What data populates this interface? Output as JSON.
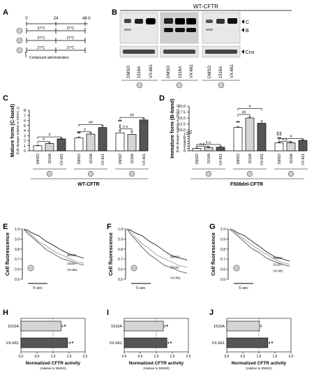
{
  "panel_labels": [
    "A",
    "B",
    "C",
    "D",
    "E",
    "F",
    "G",
    "H",
    "I",
    "J"
  ],
  "timeline": {
    "ticks": [
      "0",
      "24",
      "48 h"
    ],
    "rows": [
      {
        "left": "37°C",
        "right": "37°C",
        "compound_at": "start"
      },
      {
        "left": "37°C",
        "right": "27°C",
        "compound_at": "start"
      },
      {
        "left": "27°C",
        "right": "37°C",
        "compound_at": "start"
      }
    ],
    "legend": "Compound administration"
  },
  "blot": {
    "title": "WT-CFTR",
    "band_labels": [
      "C",
      "B",
      "Cnx"
    ],
    "lane_labels": [
      "DMSO",
      "1516A",
      "VX-661",
      "DMSO",
      "1516A",
      "VX-661",
      "DMSO",
      "1516A",
      "VX-661"
    ]
  },
  "colors": {
    "dmso": "#ffffff",
    "c1516": "#d4d4d4",
    "vx661": "#555555",
    "trace_dmso": "#222222",
    "trace_1516": "#9a9a9a",
    "trace_vx": "#555555"
  },
  "chart_data": [
    {
      "id": "C",
      "type": "bar",
      "title": "",
      "ylabel": "Mature form (C-band)",
      "ylabel_sub": "(fold changes relative to DMSO_1)",
      "xlabel": "WT-CFTR",
      "ylim": [
        0,
        8
      ],
      "yticks": [
        0,
        1,
        2,
        3,
        4,
        5,
        6,
        7,
        8
      ],
      "groups": [
        {
          "bars": [
            {
              "label": "DMSO",
              "value": 1.0,
              "err": 0.1
            },
            {
              "label": "1516A",
              "value": 1.45,
              "err": 0.1
            },
            {
              "label": "VX-661",
              "value": 2.35,
              "err": 0.15
            }
          ]
        },
        {
          "bars": [
            {
              "label": "DMSO",
              "value": 2.55,
              "err": 0.2
            },
            {
              "label": "1516A",
              "value": 3.3,
              "err": 0.3
            },
            {
              "label": "VX-661",
              "value": 4.6,
              "err": 0.35
            }
          ]
        },
        {
          "bars": [
            {
              "label": "DMSO",
              "value": 3.55,
              "err": 0.5
            },
            {
              "label": "1516A",
              "value": 3.25,
              "err": 0.6
            },
            {
              "label": "VX-661",
              "value": 6.1,
              "err": 0.3
            }
          ]
        }
      ],
      "marks": [
        {
          "group": 1,
          "bar": 0,
          "text": "**"
        },
        {
          "group": 2,
          "bar": 0,
          "text": "‡"
        },
        {
          "group": 2,
          "bar": 0,
          "text": "**"
        }
      ],
      "brackets": [
        {
          "group": 0,
          "from": 0,
          "to": 1,
          "text": "#",
          "y": 1.85
        },
        {
          "group": 0,
          "from": 0,
          "to": 2,
          "text": "#",
          "y": 2.75
        },
        {
          "group": 1,
          "from": 0,
          "to": 1,
          "text": "#",
          "y": 3.75
        },
        {
          "group": 1,
          "from": 0,
          "to": 2,
          "text": "##",
          "y": 5.2
        },
        {
          "group": 2,
          "from": 0,
          "to": 1,
          "text": "n.s.",
          "y": 4.35
        },
        {
          "group": 2,
          "from": 0,
          "to": 2,
          "text": "##",
          "y": 6.6
        }
      ]
    },
    {
      "id": "D",
      "type": "bar",
      "title": "",
      "ylabel": "Immature form (B-band)",
      "ylabel_sub": "(fold changes relative to DMSO_1)",
      "xlabel": "F508del-CFTR",
      "axis_break": true,
      "yticks": [
        "0",
        "1",
        "2",
        "3",
        "4",
        "5",
        "6",
        "7",
        "10.0",
        "12.5",
        "15.0",
        "17.5",
        "20.0"
      ],
      "groups": [
        {
          "bars": [
            {
              "label": "DMSO",
              "value": 1.0,
              "err": 0.15
            },
            {
              "label": "1516A",
              "value": 1.4,
              "err": 0.3
            },
            {
              "label": "VX-661",
              "value": 1.5,
              "err": 0.35
            }
          ]
        },
        {
          "bars": [
            {
              "label": "DMSO",
              "value": 11.0,
              "err": 0.4
            },
            {
              "label": "1516A",
              "value": 15.0,
              "err": 0.5
            },
            {
              "label": "VX-661",
              "value": 12.8,
              "err": 1.0
            }
          ]
        },
        {
          "bars": [
            {
              "label": "DMSO",
              "value": 3.3,
              "err": 0.2
            },
            {
              "label": "1516A",
              "value": 3.4,
              "err": 0.2
            },
            {
              "label": "VX-661",
              "value": 4.35,
              "err": 0.3
            }
          ]
        }
      ],
      "marks": [
        {
          "group": 1,
          "bar": 0,
          "text": "**"
        },
        {
          "group": 2,
          "bar": 0,
          "text": "**"
        },
        {
          "group": 2,
          "bar": 0,
          "text": "‡‡"
        }
      ],
      "brackets": [
        {
          "group": 0,
          "from": 0,
          "to": 1,
          "text": "n.s.",
          "y": 1.9
        },
        {
          "group": 0,
          "from": 0,
          "to": 2,
          "text": "n.s.",
          "y": 2.65
        },
        {
          "group": 1,
          "from": 0,
          "to": 1,
          "text": "##",
          "y": 16.5
        },
        {
          "group": 1,
          "from": 0,
          "to": 2,
          "text": "#",
          "y": 19.0
        },
        {
          "group": 2,
          "from": 0,
          "to": 1,
          "text": "n.s.",
          "y": 4.0
        },
        {
          "group": 2,
          "from": 0,
          "to": 2,
          "text": "#",
          "y": 5.1
        }
      ]
    },
    {
      "id": "E",
      "type": "line",
      "ylabel": "Cell fluorescence",
      "ylim": [
        0.5,
        1.0
      ],
      "yticks": [
        "0.5",
        "0.6",
        "0.7",
        "0.8",
        "0.9",
        "1.0"
      ],
      "scalebar": "5 sec",
      "series": [
        {
          "name": "DMSO",
          "x": [
            0,
            0.5,
            1,
            2,
            3,
            4,
            5,
            6,
            7,
            8
          ],
          "y": [
            1.0,
            0.99,
            0.97,
            0.93,
            0.88,
            0.83,
            0.79,
            0.76,
            0.73,
            0.71
          ]
        },
        {
          "name": "1516A",
          "x": [
            0,
            0.5,
            1,
            2,
            3,
            4,
            5,
            6,
            7,
            8
          ],
          "y": [
            1.0,
            0.97,
            0.94,
            0.88,
            0.83,
            0.78,
            0.74,
            0.71,
            0.68,
            0.66
          ]
        },
        {
          "name": "VX-661",
          "x": [
            0,
            0.5,
            1,
            2,
            3,
            4,
            5,
            6,
            7,
            8
          ],
          "y": [
            1.0,
            0.96,
            0.92,
            0.86,
            0.8,
            0.75,
            0.71,
            0.68,
            0.66,
            0.64
          ]
        }
      ]
    },
    {
      "id": "F",
      "type": "line",
      "ylabel": "Cell fluorescence",
      "ylim": [
        0.5,
        1.0
      ],
      "yticks": [
        "0.5",
        "0.6",
        "0.7",
        "0.8",
        "0.9",
        "1.0"
      ],
      "scalebar": "5 sec",
      "series": [
        {
          "name": "DMSO",
          "x": [
            0,
            0.5,
            1,
            2,
            3,
            4,
            5,
            6,
            7,
            8
          ],
          "y": [
            1.0,
            0.99,
            0.97,
            0.93,
            0.88,
            0.83,
            0.78,
            0.74,
            0.71,
            0.69
          ]
        },
        {
          "name": "1516A",
          "x": [
            0,
            0.5,
            1,
            2,
            3,
            4,
            5,
            6,
            7,
            8
          ],
          "y": [
            1.0,
            0.97,
            0.93,
            0.86,
            0.8,
            0.74,
            0.7,
            0.67,
            0.64,
            0.62
          ]
        },
        {
          "name": "VX-661",
          "x": [
            0,
            0.5,
            1,
            2,
            3,
            4,
            5,
            6,
            7,
            8
          ],
          "y": [
            1.0,
            0.95,
            0.9,
            0.82,
            0.75,
            0.69,
            0.64,
            0.61,
            0.58,
            0.56
          ]
        }
      ]
    },
    {
      "id": "G",
      "type": "line",
      "ylabel": "Cell fluorescence",
      "ylim": [
        0.5,
        1.0
      ],
      "yticks": [
        "0.5",
        "0.6",
        "0.7",
        "0.8",
        "0.9",
        "1.0"
      ],
      "scalebar": "5 sec",
      "series": [
        {
          "name": "DMSO",
          "x": [
            0,
            0.5,
            1,
            2,
            3,
            4,
            5,
            6,
            7,
            8
          ],
          "y": [
            1.0,
            0.99,
            0.97,
            0.93,
            0.88,
            0.82,
            0.77,
            0.73,
            0.7,
            0.68
          ]
        },
        {
          "name": "1516A",
          "x": [
            0,
            0.5,
            1,
            2,
            3,
            4,
            5,
            6,
            7,
            8
          ],
          "y": [
            1.0,
            0.98,
            0.95,
            0.9,
            0.84,
            0.79,
            0.74,
            0.7,
            0.67,
            0.65
          ]
        },
        {
          "name": "VX-661",
          "x": [
            0,
            0.5,
            1,
            2,
            3,
            4,
            5,
            6,
            7,
            8
          ],
          "y": [
            1.0,
            0.97,
            0.93,
            0.87,
            0.81,
            0.76,
            0.71,
            0.67,
            0.65,
            0.63
          ]
        }
      ]
    },
    {
      "id": "H",
      "type": "bar",
      "orientation": "horizontal",
      "categories": [
        "1516A",
        "VX-661"
      ],
      "values": [
        1.25,
        1.45
      ],
      "errors": [
        0.05,
        0.08
      ],
      "marks": [
        "*",
        "*"
      ],
      "xlim": [
        0,
        2.0
      ],
      "xticks": [
        "0.0",
        "0.5",
        "1.0",
        "1.5",
        "2.0"
      ],
      "xlabel": "Normalized CFTR activity",
      "xlabel_sub": "(relative to DMSO)"
    },
    {
      "id": "I",
      "type": "bar",
      "orientation": "horizontal",
      "categories": [
        "1516A",
        "VX-661"
      ],
      "values": [
        1.22,
        1.33
      ],
      "errors": [
        0.05,
        0.05
      ],
      "marks": [
        "*",
        "*"
      ],
      "xlim": [
        0,
        2.0
      ],
      "xticks": [
        "0.0",
        "0.5",
        "1.0",
        "1.5",
        "2.0"
      ],
      "xlabel": "Normalized CFTR activity",
      "xlabel_sub": "(relative to DMSO)"
    },
    {
      "id": "J",
      "type": "bar",
      "orientation": "horizontal",
      "categories": [
        "1516A",
        "VX-661"
      ],
      "values": [
        1.02,
        1.28
      ],
      "errors": [
        0.05,
        0.06
      ],
      "marks": [
        "",
        "*"
      ],
      "xlim": [
        0,
        2.0
      ],
      "xticks": [
        "0.0",
        "0.5",
        "1.0",
        "1.5",
        "2.0"
      ],
      "xlabel": "Normalized CFTR activity",
      "xlabel_sub": "(relative to DMSO)"
    }
  ]
}
